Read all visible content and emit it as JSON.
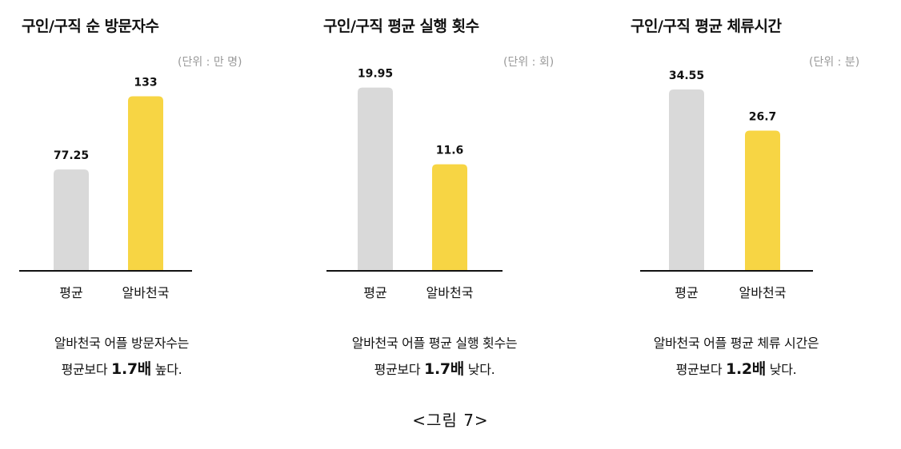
{
  "colors": {
    "baseline": "#cfcfcf",
    "highlight": "#f7d544",
    "axis": "#111111",
    "unit": "#9a9a9a"
  },
  "chart_data": [
    {
      "type": "bar",
      "title": "구인/구직 순 방문자수",
      "unit_label": "(단위 : 만 명)",
      "categories": [
        "평균",
        "알바천국"
      ],
      "values": [
        77.25,
        133
      ],
      "value_labels": [
        "77.25",
        "133"
      ],
      "colors": [
        "#d9d9d9",
        "#f7d544"
      ],
      "ylim": [
        0,
        140
      ],
      "caption_line1": "알바천국 어플 방문자수는",
      "caption_pre": "평균보다 ",
      "caption_bold": "1.7배",
      "caption_post": " 높다."
    },
    {
      "type": "bar",
      "title": "구인/구직 평균 실행 횟수",
      "unit_label": "(단위 : 회)",
      "categories": [
        "평균",
        "알바천국"
      ],
      "values": [
        19.95,
        11.6
      ],
      "value_labels": [
        "19.95",
        "11.6"
      ],
      "colors": [
        "#d9d9d9",
        "#f7d544"
      ],
      "ylim": [
        0,
        20
      ],
      "caption_line1": "알바천국 어플 평균 실행 횟수는",
      "caption_pre": "평균보다 ",
      "caption_bold": "1.7배",
      "caption_post": " 낮다."
    },
    {
      "type": "bar",
      "title": "구인/구직 평균 체류시간",
      "unit_label": "(단위 : 분)",
      "categories": [
        "평균",
        "알바천국"
      ],
      "values": [
        34.55,
        26.7
      ],
      "value_labels": [
        "34.55",
        "26.7"
      ],
      "colors": [
        "#d9d9d9",
        "#f7d544"
      ],
      "ylim": [
        0,
        35
      ],
      "caption_line1": "알바천국 어플 평균 체류 시간은",
      "caption_pre": "평균보다 ",
      "caption_bold": "1.2배",
      "caption_post": " 낮다."
    }
  ],
  "figure_caption": "<그림 7>"
}
